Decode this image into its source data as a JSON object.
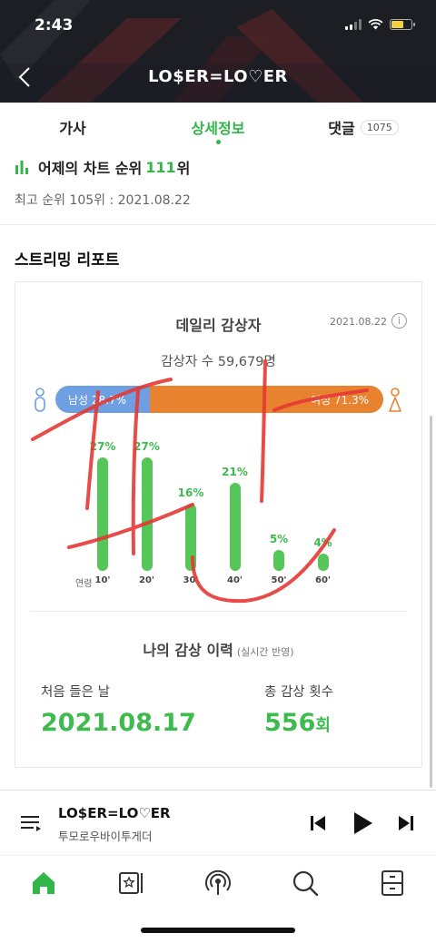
{
  "status": {
    "time": "2:43"
  },
  "song": {
    "title": "LO$ER=LO♡ER",
    "artist": "투모로우바이투게더"
  },
  "tabs": [
    {
      "label": "가사",
      "active": false
    },
    {
      "label": "상세정보",
      "active": true
    },
    {
      "label": "댓글",
      "badge": "1075",
      "active": false
    }
  ],
  "chart_rank": {
    "label": "어제의 차트 순위",
    "rank": "111",
    "unit": "위",
    "best": "최고 순위 105위 : 2021.08.22"
  },
  "report": {
    "section_title": "스트리밍 리포트",
    "daily_title": "데일리 감상자",
    "date": "2021.08.22",
    "listeners": "감상자 수 59,679명",
    "male_label": "남성 28.7%",
    "female_label": "여성 71.3%",
    "male_pct": 28.7,
    "female_pct": 71.3,
    "age_axis_label": "연령",
    "ages": [
      {
        "label": "10'",
        "pct": "27%",
        "value": 27
      },
      {
        "label": "20'",
        "pct": "27%",
        "value": 27
      },
      {
        "label": "30'",
        "pct": "16%",
        "value": 16
      },
      {
        "label": "40'",
        "pct": "21%",
        "value": 21
      },
      {
        "label": "50'",
        "pct": "5%",
        "value": 5
      },
      {
        "label": "60'",
        "pct": "4%",
        "value": 4
      }
    ],
    "history_title": "나의 감상 이력",
    "history_note": "(실시간 반영)",
    "first_listen_label": "처음 들은 날",
    "first_listen_value": "2021.08.17",
    "total_label": "총 감상 횟수",
    "total_value": "556",
    "total_unit": "회"
  },
  "colors": {
    "accent": "#32b64a",
    "male": "#6e9fe3",
    "female": "#e8822e",
    "bar": "#55c658",
    "scribble": "#e53935"
  },
  "icons": {
    "back": "chevron-left-icon",
    "chart": "bar-chart-icon",
    "info": "info-icon",
    "playlist": "playlist-icon",
    "prev": "skip-previous-icon",
    "play": "play-icon",
    "next": "skip-next-icon",
    "nav": [
      "home-icon",
      "library-icon",
      "podcast-icon",
      "search-icon",
      "drawer-icon"
    ]
  }
}
